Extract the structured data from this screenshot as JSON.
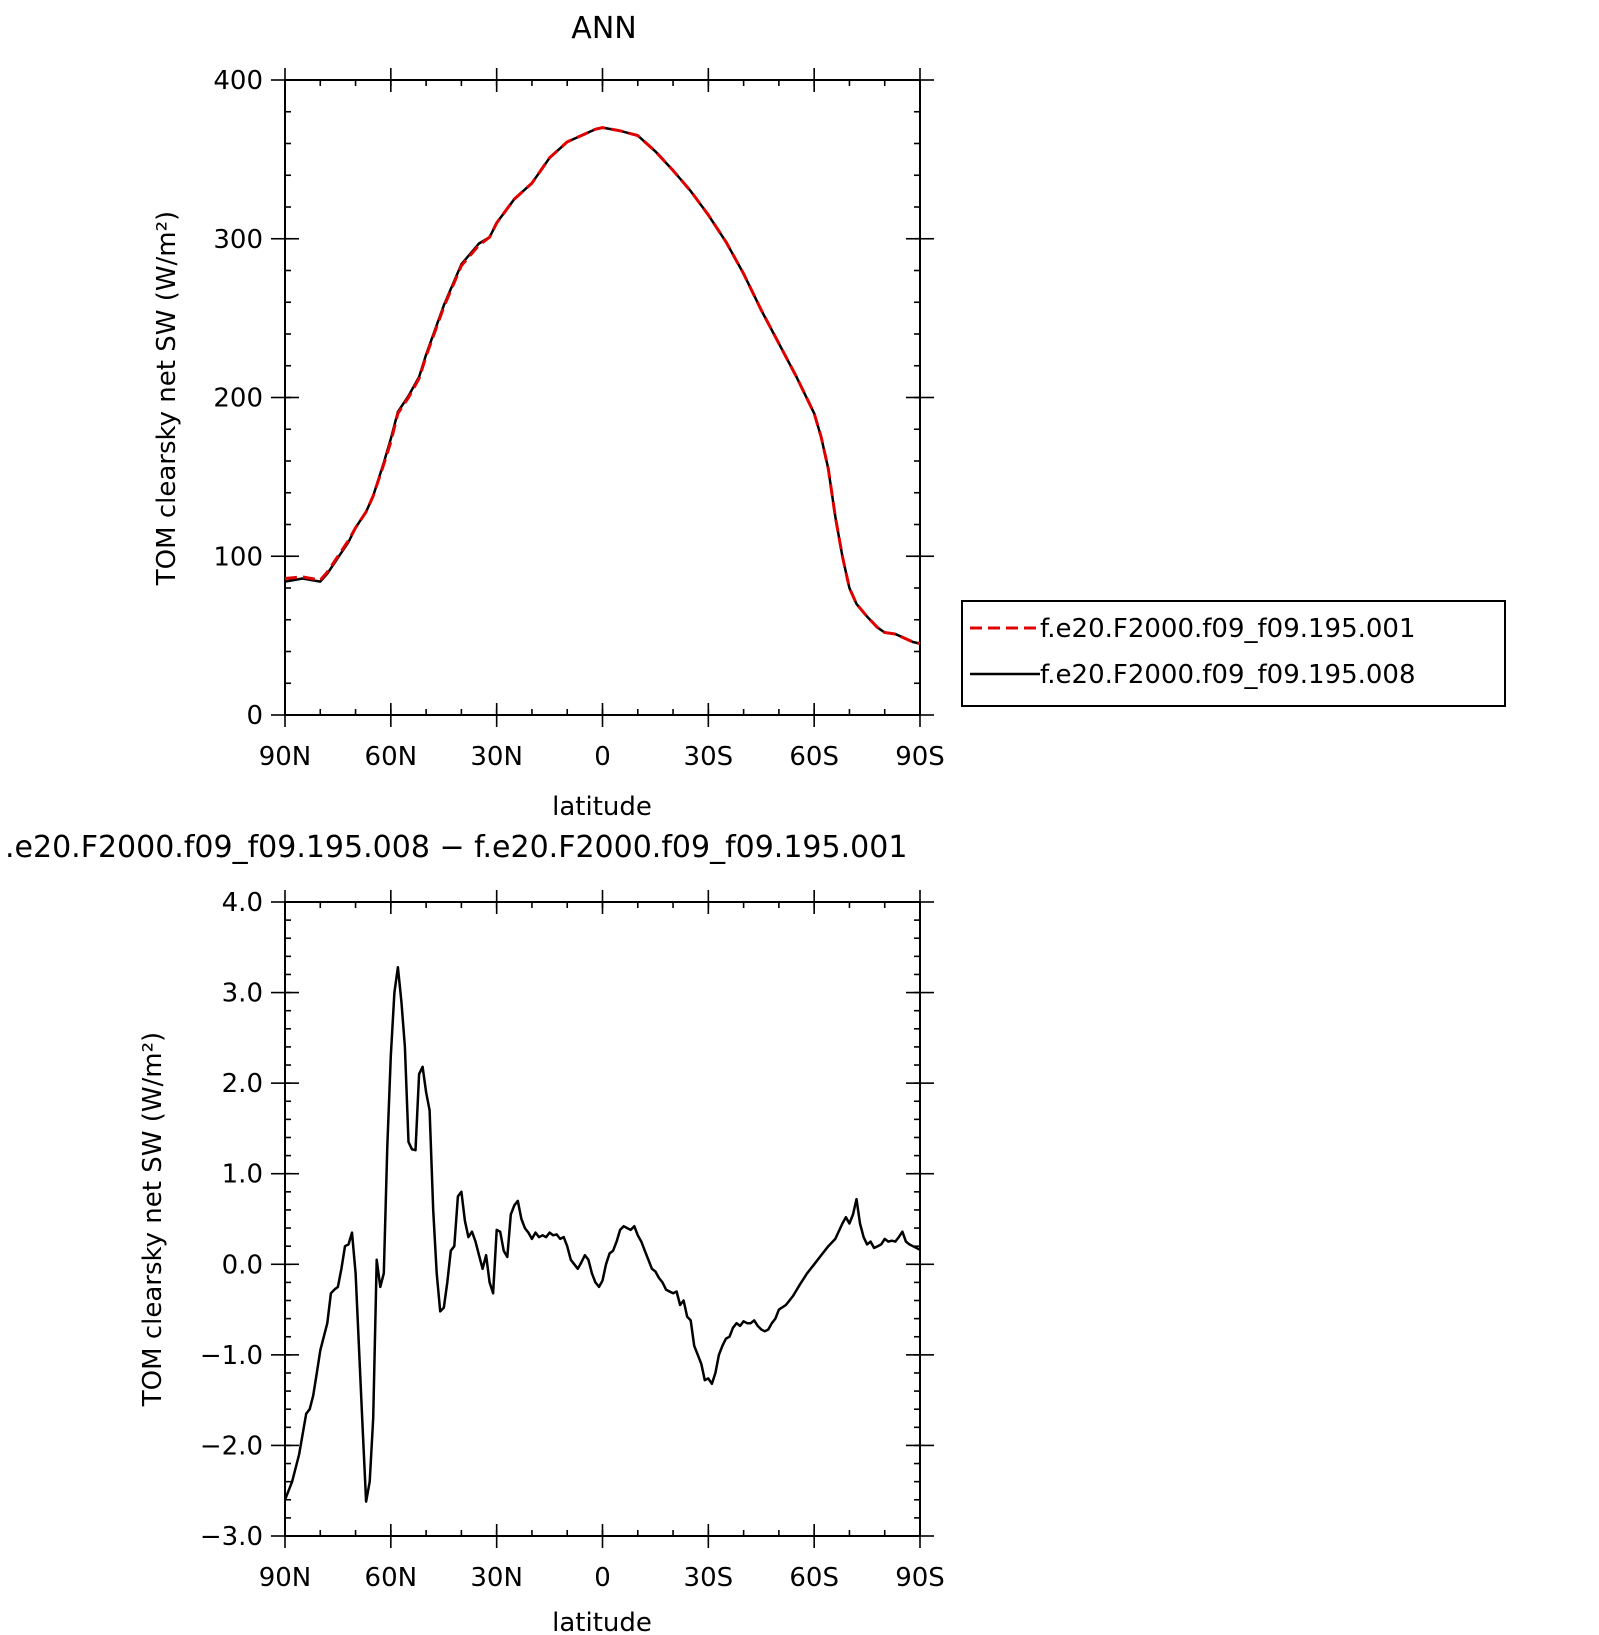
{
  "chart_data": [
    {
      "type": "line",
      "title": "ANN",
      "xlabel": "latitude",
      "ylabel": "TOM clearsky net SW (W/m²)",
      "x_tick_labels": [
        "90N",
        "60N",
        "30N",
        "0",
        "30S",
        "60S",
        "90S"
      ],
      "x_ticks": [
        90,
        60,
        30,
        0,
        -30,
        -60,
        -90
      ],
      "xlim": [
        90,
        -90
      ],
      "ylim": [
        0,
        400
      ],
      "y_ticks": [
        0,
        100,
        200,
        300,
        400
      ],
      "y_tick_labels": [
        "0",
        "100",
        "200",
        "300",
        "400"
      ],
      "grid": false,
      "legend": "right",
      "series": [
        {
          "name": "f.e20.F2000.f09_f09.195.001",
          "color": "#e00000",
          "style": "dashed",
          "x": [
            90,
            85,
            80,
            78,
            75,
            72,
            70,
            67,
            65,
            62,
            60,
            58,
            55,
            52,
            50,
            45,
            40,
            35,
            32,
            30,
            25,
            20,
            15,
            10,
            5,
            2,
            0,
            -5,
            -10,
            -15,
            -20,
            -25,
            -30,
            -35,
            -40,
            -45,
            -50,
            -55,
            -60,
            -62,
            -64,
            -66,
            -68,
            -70,
            -72,
            -75,
            -78,
            -80,
            -83,
            -85,
            -88,
            -90
          ],
          "y": [
            86,
            87,
            85,
            90,
            100,
            110,
            118,
            128,
            138,
            158,
            172,
            190,
            200,
            212,
            226,
            257,
            283,
            296,
            301,
            310,
            325,
            335,
            351,
            361,
            366,
            369,
            370,
            368,
            365,
            355,
            343,
            330,
            315,
            298,
            278,
            255,
            234,
            213,
            190,
            175,
            155,
            125,
            100,
            80,
            70,
            62,
            55,
            52,
            51,
            49,
            46,
            45
          ]
        },
        {
          "name": "f.e20.F2000.f09_f09.195.008",
          "color": "#000000",
          "style": "solid",
          "x": [
            90,
            85,
            80,
            78,
            75,
            72,
            70,
            67,
            65,
            62,
            60,
            58,
            55,
            52,
            50,
            45,
            40,
            35,
            32,
            30,
            25,
            20,
            15,
            10,
            5,
            2,
            0,
            -5,
            -10,
            -15,
            -20,
            -25,
            -30,
            -35,
            -40,
            -45,
            -50,
            -55,
            -60,
            -62,
            -64,
            -66,
            -68,
            -70,
            -72,
            -75,
            -78,
            -80,
            -83,
            -85,
            -88,
            -90
          ],
          "y": [
            84,
            86,
            84,
            89,
            99,
            109,
            118,
            128,
            138,
            159,
            174,
            191,
            201,
            213,
            227,
            258,
            284,
            297,
            301,
            310,
            325,
            335,
            351,
            361,
            366,
            369,
            370,
            368,
            365,
            355,
            343,
            330,
            315,
            298,
            278,
            255,
            234,
            213,
            190,
            175,
            155,
            125,
            100,
            80,
            70,
            62,
            55,
            52,
            51,
            49,
            46,
            45
          ]
        }
      ]
    },
    {
      "type": "line",
      "title": ".e20.F2000.f09_f09.195.008 − f.e20.F2000.f09_f09.195.001",
      "xlabel": "latitude",
      "ylabel": "TOM clearsky net SW (W/m²)",
      "x_tick_labels": [
        "90N",
        "60N",
        "30N",
        "0",
        "30S",
        "60S",
        "90S"
      ],
      "x_ticks": [
        90,
        60,
        30,
        0,
        -30,
        -60,
        -90
      ],
      "xlim": [
        90,
        -90
      ],
      "ylim": [
        -3.0,
        4.0
      ],
      "y_ticks": [
        -3.0,
        -2.0,
        -1.0,
        0.0,
        1.0,
        2.0,
        3.0,
        4.0
      ],
      "y_tick_labels": [
        "−3.0",
        "−2.0",
        "−1.0",
        "0.0",
        "1.0",
        "2.0",
        "3.0",
        "4.0"
      ],
      "grid": false,
      "series": [
        {
          "color": "#000000",
          "style": "solid",
          "x": [
            90,
            88,
            86,
            84,
            83,
            82,
            81,
            80,
            79,
            78,
            77,
            76,
            75,
            74,
            73,
            72,
            71,
            70,
            69,
            68,
            67,
            66,
            65,
            64,
            63,
            62,
            61,
            60,
            59,
            58,
            57,
            56,
            55,
            54,
            53,
            52,
            51,
            50,
            49,
            48,
            47,
            46,
            45,
            44,
            43,
            42,
            41,
            40,
            39,
            38,
            37,
            36,
            35,
            34,
            33,
            32,
            31,
            30,
            29,
            28,
            27,
            26,
            25,
            24,
            23,
            22,
            21,
            20,
            19,
            18,
            17,
            16,
            15,
            14,
            13,
            12,
            11,
            10,
            9,
            8,
            7,
            6,
            5,
            4,
            3,
            2,
            1,
            0,
            -1,
            -2,
            -3,
            -4,
            -5,
            -6,
            -7,
            -8,
            -9,
            -10,
            -11,
            -12,
            -13,
            -14,
            -15,
            -16,
            -17,
            -18,
            -19,
            -20,
            -21,
            -22,
            -23,
            -24,
            -25,
            -26,
            -27,
            -28,
            -29,
            -30,
            -31,
            -32,
            -33,
            -34,
            -35,
            -36,
            -37,
            -38,
            -39,
            -40,
            -41,
            -42,
            -43,
            -44,
            -45,
            -46,
            -47,
            -48,
            -49,
            -50,
            -52,
            -54,
            -56,
            -58,
            -60,
            -62,
            -64,
            -66,
            -68,
            -69,
            -70,
            -71,
            -72,
            -73,
            -74,
            -75,
            -76,
            -77,
            -78,
            -79,
            -80,
            -81,
            -82,
            -83,
            -84,
            -85,
            -86,
            -87,
            -88,
            -90
          ],
          "y": [
            -2.6,
            -2.4,
            -2.1,
            -1.65,
            -1.6,
            -1.45,
            -1.2,
            -0.95,
            -0.8,
            -0.65,
            -0.32,
            -0.28,
            -0.25,
            -0.05,
            0.2,
            0.22,
            0.35,
            -0.1,
            -0.95,
            -1.8,
            -2.62,
            -2.4,
            -1.7,
            0.05,
            -0.25,
            -0.1,
            1.3,
            2.3,
            3.0,
            3.28,
            2.9,
            2.4,
            1.35,
            1.27,
            1.26,
            2.1,
            2.18,
            1.9,
            1.7,
            0.6,
            -0.1,
            -0.52,
            -0.48,
            -0.2,
            0.15,
            0.2,
            0.75,
            0.8,
            0.48,
            0.3,
            0.36,
            0.25,
            0.1,
            -0.05,
            0.1,
            -0.2,
            -0.32,
            0.38,
            0.36,
            0.15,
            0.08,
            0.55,
            0.65,
            0.7,
            0.5,
            0.4,
            0.35,
            0.28,
            0.35,
            0.3,
            0.32,
            0.3,
            0.35,
            0.32,
            0.33,
            0.28,
            0.3,
            0.2,
            0.05,
            0.0,
            -0.05,
            0.02,
            0.1,
            0.05,
            -0.1,
            -0.2,
            -0.25,
            -0.18,
            0.0,
            0.12,
            0.15,
            0.25,
            0.38,
            0.42,
            0.4,
            0.38,
            0.42,
            0.32,
            0.25,
            0.15,
            0.05,
            -0.05,
            -0.08,
            -0.15,
            -0.2,
            -0.28,
            -0.3,
            -0.32,
            -0.3,
            -0.45,
            -0.4,
            -0.58,
            -0.62,
            -0.9,
            -1.0,
            -1.1,
            -1.28,
            -1.26,
            -1.32,
            -1.2,
            -1.0,
            -0.9,
            -0.82,
            -0.8,
            -0.7,
            -0.65,
            -0.68,
            -0.63,
            -0.65,
            -0.65,
            -0.62,
            -0.68,
            -0.72,
            -0.74,
            -0.72,
            -0.65,
            -0.6,
            -0.5,
            -0.45,
            -0.35,
            -0.22,
            -0.1,
            0.0,
            0.1,
            0.2,
            0.28,
            0.45,
            0.52,
            0.45,
            0.55,
            0.72,
            0.45,
            0.3,
            0.22,
            0.25,
            0.18,
            0.2,
            0.22,
            0.28,
            0.25,
            0.26,
            0.25,
            0.3,
            0.36,
            0.25,
            0.22,
            0.2,
            0.16
          ]
        }
      ]
    }
  ]
}
